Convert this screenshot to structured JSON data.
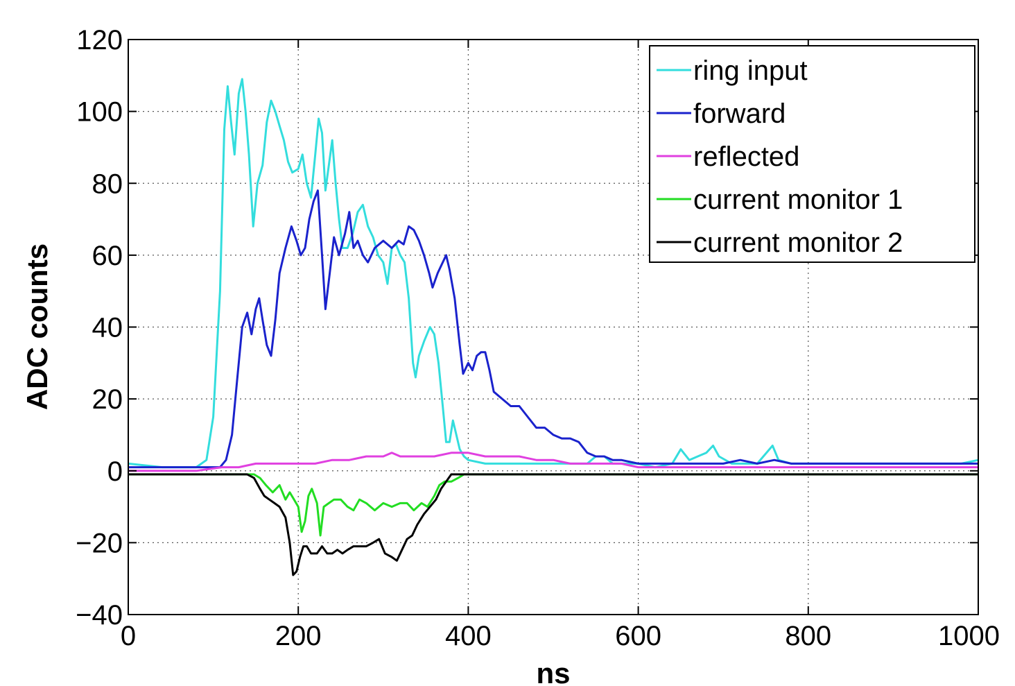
{
  "chart_data": {
    "type": "line",
    "title": "",
    "xlabel": "ns",
    "ylabel": "ADC counts",
    "xlim": [
      0,
      1000
    ],
    "ylim": [
      -40,
      120
    ],
    "xticks": [
      0,
      200,
      400,
      600,
      800,
      1000
    ],
    "xtick_labels": [
      "0",
      "200",
      "400",
      "600",
      "800",
      "1000"
    ],
    "yticks": [
      -40,
      -20,
      0,
      20,
      40,
      60,
      80,
      100,
      120
    ],
    "ytick_labels": [
      "−40",
      "−20",
      "0",
      "20",
      "40",
      "60",
      "80",
      "100",
      "120"
    ],
    "grid": true,
    "legend_position": "top-right",
    "series": [
      {
        "name": "ring input",
        "color": "#33dddd",
        "points": [
          [
            0,
            2
          ],
          [
            40,
            1
          ],
          [
            80,
            1
          ],
          [
            92,
            3
          ],
          [
            100,
            15
          ],
          [
            108,
            50
          ],
          [
            113,
            95
          ],
          [
            117,
            107
          ],
          [
            121,
            97
          ],
          [
            125,
            88
          ],
          [
            130,
            105
          ],
          [
            134,
            109
          ],
          [
            138,
            100
          ],
          [
            142,
            88
          ],
          [
            147,
            68
          ],
          [
            152,
            80
          ],
          [
            158,
            85
          ],
          [
            163,
            97
          ],
          [
            168,
            103
          ],
          [
            173,
            100
          ],
          [
            178,
            96
          ],
          [
            183,
            92
          ],
          [
            188,
            86
          ],
          [
            193,
            83
          ],
          [
            200,
            84
          ],
          [
            205,
            88
          ],
          [
            210,
            80
          ],
          [
            215,
            76
          ],
          [
            220,
            88
          ],
          [
            224,
            98
          ],
          [
            228,
            94
          ],
          [
            232,
            78
          ],
          [
            236,
            85
          ],
          [
            240,
            92
          ],
          [
            244,
            80
          ],
          [
            248,
            70
          ],
          [
            252,
            62
          ],
          [
            258,
            62
          ],
          [
            264,
            66
          ],
          [
            270,
            72
          ],
          [
            276,
            74
          ],
          [
            282,
            68
          ],
          [
            288,
            65
          ],
          [
            294,
            60
          ],
          [
            300,
            58
          ],
          [
            305,
            52
          ],
          [
            310,
            62
          ],
          [
            315,
            63
          ],
          [
            320,
            60
          ],
          [
            325,
            58
          ],
          [
            330,
            48
          ],
          [
            335,
            30
          ],
          [
            338,
            26
          ],
          [
            342,
            32
          ],
          [
            348,
            36
          ],
          [
            355,
            40
          ],
          [
            360,
            38
          ],
          [
            365,
            30
          ],
          [
            370,
            18
          ],
          [
            374,
            8
          ],
          [
            378,
            8
          ],
          [
            382,
            14
          ],
          [
            386,
            10
          ],
          [
            390,
            6
          ],
          [
            395,
            4
          ],
          [
            400,
            3
          ],
          [
            420,
            2
          ],
          [
            450,
            2
          ],
          [
            500,
            2
          ],
          [
            540,
            2
          ],
          [
            550,
            4
          ],
          [
            560,
            4
          ],
          [
            570,
            2
          ],
          [
            600,
            2
          ],
          [
            620,
            1
          ],
          [
            640,
            2
          ],
          [
            650,
            6
          ],
          [
            660,
            3
          ],
          [
            670,
            4
          ],
          [
            680,
            5
          ],
          [
            688,
            7
          ],
          [
            695,
            4
          ],
          [
            710,
            2
          ],
          [
            740,
            2
          ],
          [
            758,
            7
          ],
          [
            765,
            3
          ],
          [
            780,
            2
          ],
          [
            820,
            2
          ],
          [
            860,
            2
          ],
          [
            900,
            2
          ],
          [
            940,
            2
          ],
          [
            980,
            2
          ],
          [
            1000,
            3
          ]
        ]
      },
      {
        "name": "forward",
        "color": "#1a22cc",
        "points": [
          [
            0,
            1
          ],
          [
            100,
            1
          ],
          [
            108,
            1
          ],
          [
            115,
            3
          ],
          [
            122,
            10
          ],
          [
            128,
            25
          ],
          [
            134,
            40
          ],
          [
            140,
            44
          ],
          [
            145,
            38
          ],
          [
            150,
            45
          ],
          [
            154,
            48
          ],
          [
            158,
            42
          ],
          [
            163,
            35
          ],
          [
            168,
            32
          ],
          [
            173,
            42
          ],
          [
            178,
            55
          ],
          [
            185,
            62
          ],
          [
            192,
            68
          ],
          [
            198,
            64
          ],
          [
            203,
            60
          ],
          [
            208,
            62
          ],
          [
            213,
            70
          ],
          [
            218,
            75
          ],
          [
            223,
            78
          ],
          [
            228,
            60
          ],
          [
            232,
            45
          ],
          [
            237,
            55
          ],
          [
            242,
            65
          ],
          [
            248,
            60
          ],
          [
            255,
            66
          ],
          [
            260,
            72
          ],
          [
            265,
            62
          ],
          [
            270,
            64
          ],
          [
            276,
            60
          ],
          [
            282,
            58
          ],
          [
            290,
            62
          ],
          [
            300,
            64
          ],
          [
            310,
            62
          ],
          [
            318,
            64
          ],
          [
            324,
            63
          ],
          [
            330,
            68
          ],
          [
            336,
            67
          ],
          [
            342,
            64
          ],
          [
            348,
            60
          ],
          [
            354,
            55
          ],
          [
            358,
            51
          ],
          [
            364,
            55
          ],
          [
            370,
            58
          ],
          [
            374,
            60
          ],
          [
            378,
            56
          ],
          [
            384,
            48
          ],
          [
            390,
            35
          ],
          [
            394,
            27
          ],
          [
            400,
            30
          ],
          [
            405,
            28
          ],
          [
            410,
            32
          ],
          [
            415,
            33
          ],
          [
            420,
            33
          ],
          [
            425,
            28
          ],
          [
            430,
            22
          ],
          [
            440,
            20
          ],
          [
            450,
            18
          ],
          [
            460,
            18
          ],
          [
            470,
            15
          ],
          [
            480,
            12
          ],
          [
            490,
            12
          ],
          [
            500,
            10
          ],
          [
            510,
            9
          ],
          [
            520,
            9
          ],
          [
            530,
            8
          ],
          [
            540,
            5
          ],
          [
            550,
            4
          ],
          [
            560,
            4
          ],
          [
            570,
            3
          ],
          [
            580,
            3
          ],
          [
            600,
            2
          ],
          [
            650,
            2
          ],
          [
            700,
            2
          ],
          [
            720,
            3
          ],
          [
            740,
            2
          ],
          [
            760,
            3
          ],
          [
            780,
            2
          ],
          [
            800,
            2
          ],
          [
            850,
            2
          ],
          [
            900,
            2
          ],
          [
            950,
            2
          ],
          [
            1000,
            2
          ]
        ]
      },
      {
        "name": "reflected",
        "color": "#e040e0",
        "points": [
          [
            0,
            0
          ],
          [
            80,
            0
          ],
          [
            110,
            1
          ],
          [
            130,
            1
          ],
          [
            150,
            2
          ],
          [
            180,
            2
          ],
          [
            200,
            2
          ],
          [
            220,
            2
          ],
          [
            240,
            3
          ],
          [
            260,
            3
          ],
          [
            280,
            4
          ],
          [
            300,
            4
          ],
          [
            310,
            5
          ],
          [
            320,
            4
          ],
          [
            340,
            4
          ],
          [
            360,
            4
          ],
          [
            380,
            5
          ],
          [
            400,
            5
          ],
          [
            420,
            4
          ],
          [
            440,
            4
          ],
          [
            460,
            4
          ],
          [
            480,
            3
          ],
          [
            500,
            3
          ],
          [
            520,
            2
          ],
          [
            540,
            2
          ],
          [
            560,
            2
          ],
          [
            580,
            2
          ],
          [
            600,
            1
          ],
          [
            650,
            1
          ],
          [
            700,
            1
          ],
          [
            750,
            1
          ],
          [
            800,
            1
          ],
          [
            850,
            1
          ],
          [
            900,
            1
          ],
          [
            950,
            1
          ],
          [
            1000,
            1
          ]
        ]
      },
      {
        "name": "current monitor 1",
        "color": "#22dd22",
        "points": [
          [
            0,
            -1
          ],
          [
            100,
            -1
          ],
          [
            140,
            -1
          ],
          [
            148,
            -1
          ],
          [
            155,
            -2
          ],
          [
            162,
            -4
          ],
          [
            170,
            -6
          ],
          [
            178,
            -4
          ],
          [
            185,
            -8
          ],
          [
            190,
            -6
          ],
          [
            195,
            -8
          ],
          [
            200,
            -10
          ],
          [
            204,
            -17
          ],
          [
            208,
            -14
          ],
          [
            212,
            -7
          ],
          [
            216,
            -5
          ],
          [
            222,
            -9
          ],
          [
            226,
            -18
          ],
          [
            230,
            -10
          ],
          [
            236,
            -9
          ],
          [
            242,
            -8
          ],
          [
            250,
            -8
          ],
          [
            258,
            -10
          ],
          [
            265,
            -11
          ],
          [
            272,
            -8
          ],
          [
            280,
            -9
          ],
          [
            290,
            -11
          ],
          [
            300,
            -9
          ],
          [
            310,
            -10
          ],
          [
            320,
            -9
          ],
          [
            328,
            -9
          ],
          [
            336,
            -11
          ],
          [
            345,
            -9
          ],
          [
            352,
            -10
          ],
          [
            360,
            -7
          ],
          [
            366,
            -4
          ],
          [
            372,
            -3
          ],
          [
            380,
            -3
          ],
          [
            388,
            -2
          ],
          [
            395,
            -1
          ],
          [
            400,
            -1
          ],
          [
            450,
            -1
          ],
          [
            500,
            -1
          ],
          [
            600,
            -1
          ],
          [
            700,
            -1
          ],
          [
            800,
            -1
          ],
          [
            900,
            -1
          ],
          [
            1000,
            -1
          ]
        ]
      },
      {
        "name": "current monitor 2",
        "color": "#000000",
        "points": [
          [
            0,
            -1
          ],
          [
            100,
            -1
          ],
          [
            140,
            -1
          ],
          [
            148,
            -2
          ],
          [
            155,
            -5
          ],
          [
            160,
            -7
          ],
          [
            166,
            -8
          ],
          [
            172,
            -9
          ],
          [
            178,
            -10
          ],
          [
            185,
            -13
          ],
          [
            190,
            -20
          ],
          [
            194,
            -29
          ],
          [
            198,
            -28
          ],
          [
            202,
            -24
          ],
          [
            206,
            -21
          ],
          [
            210,
            -21
          ],
          [
            215,
            -23
          ],
          [
            222,
            -23
          ],
          [
            228,
            -21
          ],
          [
            234,
            -23
          ],
          [
            240,
            -23
          ],
          [
            246,
            -22
          ],
          [
            252,
            -23
          ],
          [
            258,
            -22
          ],
          [
            265,
            -21
          ],
          [
            272,
            -21
          ],
          [
            280,
            -21
          ],
          [
            288,
            -20
          ],
          [
            295,
            -19
          ],
          [
            302,
            -23
          ],
          [
            310,
            -24
          ],
          [
            316,
            -25
          ],
          [
            322,
            -22
          ],
          [
            328,
            -19
          ],
          [
            334,
            -18
          ],
          [
            340,
            -15
          ],
          [
            348,
            -12
          ],
          [
            355,
            -10
          ],
          [
            362,
            -8
          ],
          [
            368,
            -5
          ],
          [
            374,
            -3
          ],
          [
            380,
            -1
          ],
          [
            388,
            -1
          ],
          [
            400,
            -1
          ],
          [
            450,
            -1
          ],
          [
            500,
            -1
          ],
          [
            600,
            -1
          ],
          [
            700,
            -1
          ],
          [
            800,
            -1
          ],
          [
            900,
            -1
          ],
          [
            1000,
            -1
          ]
        ]
      }
    ]
  }
}
